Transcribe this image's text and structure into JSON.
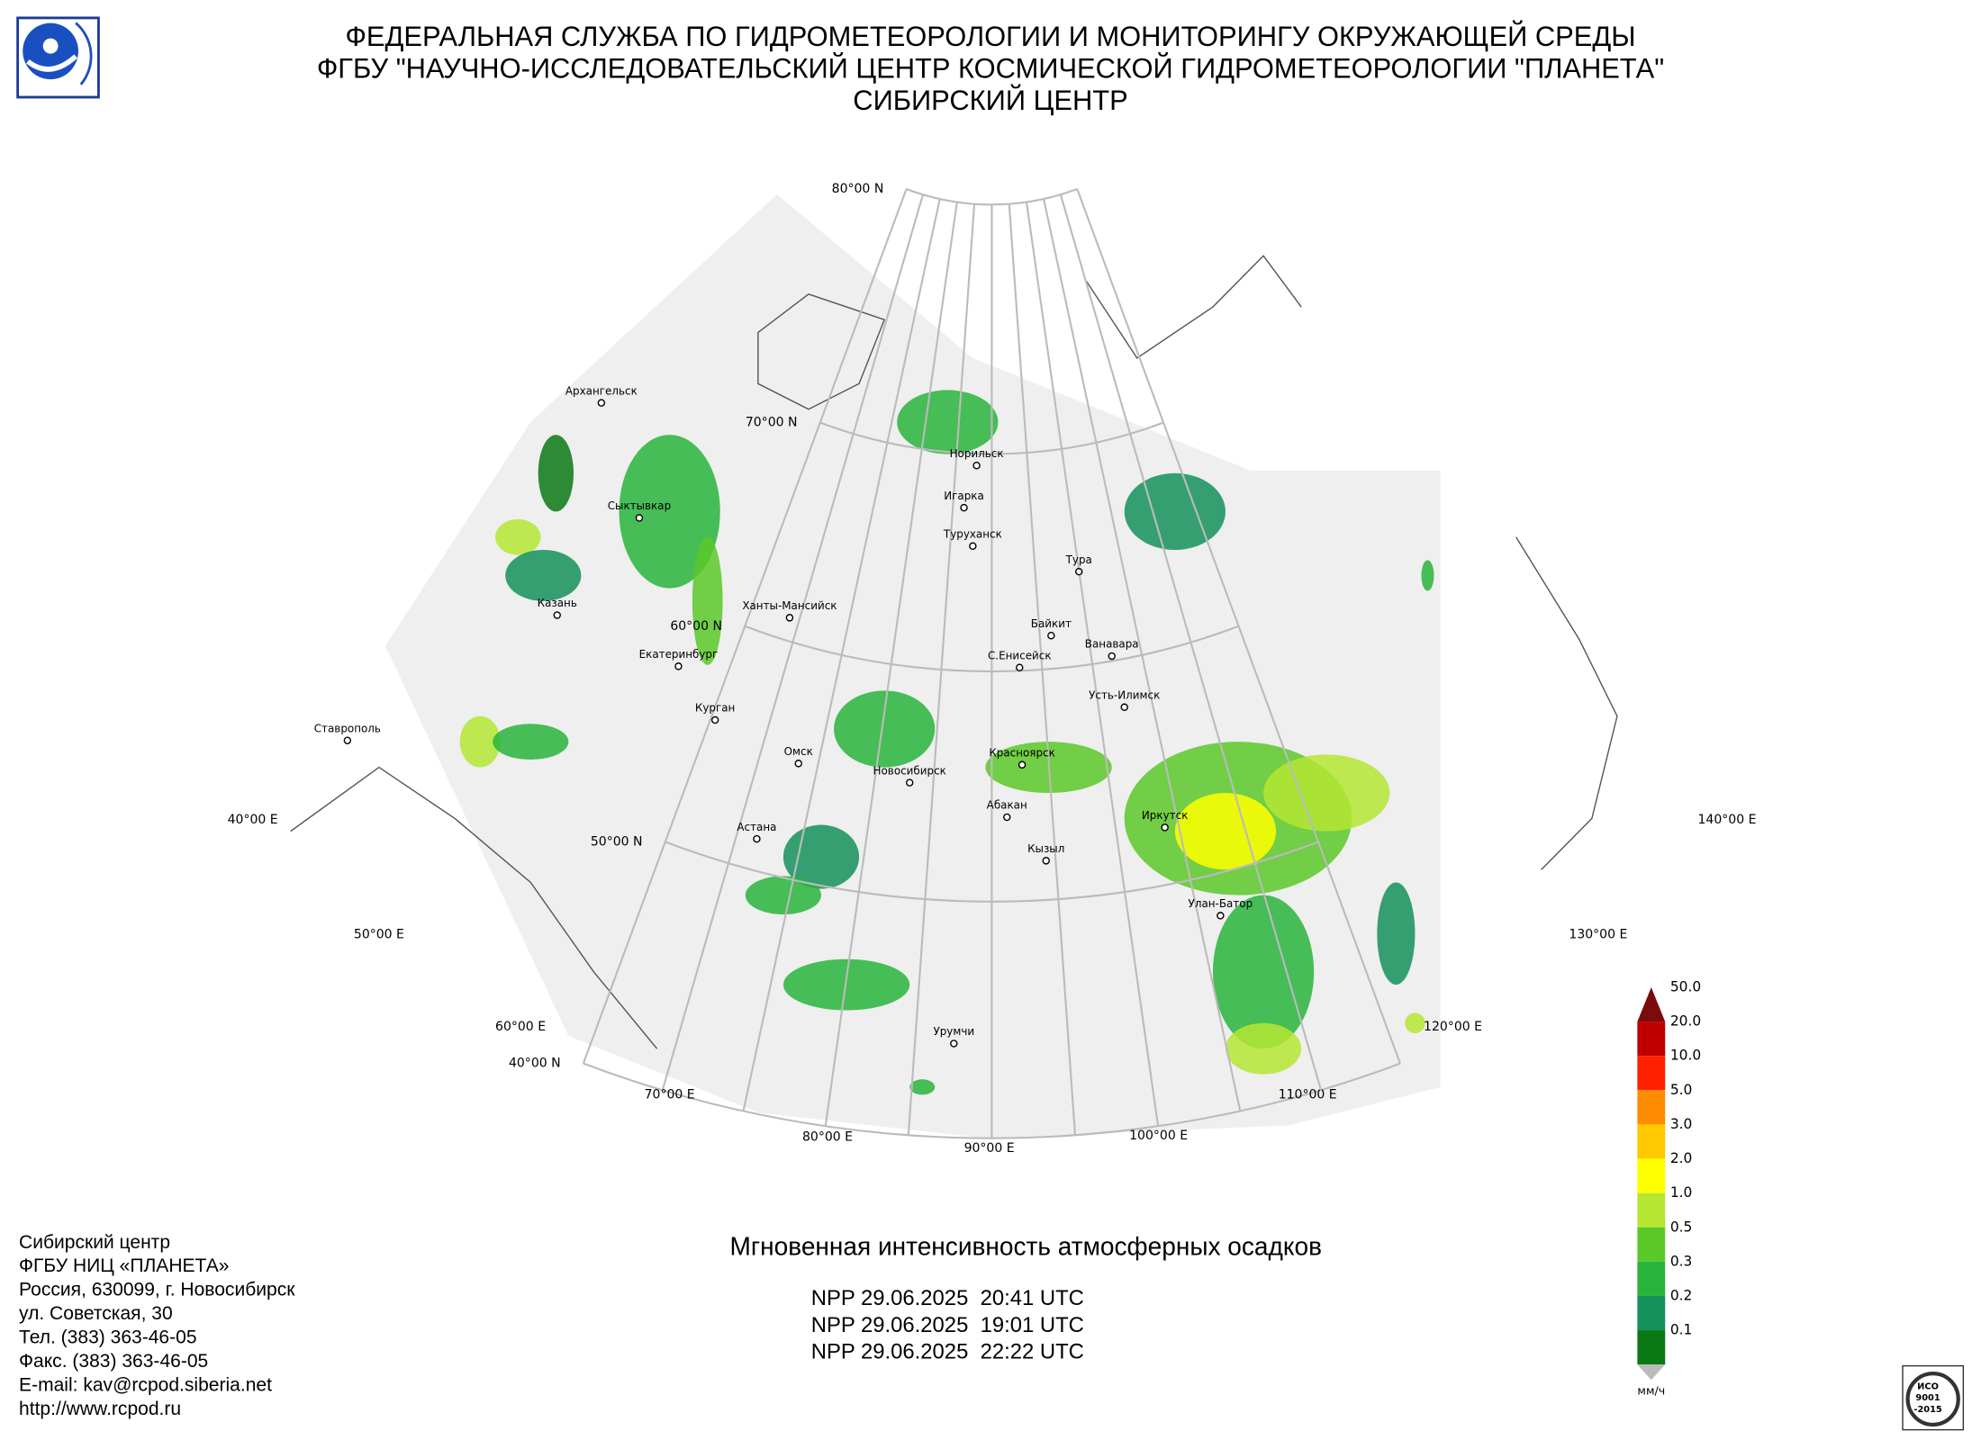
{
  "header": {
    "lines": [
      "ФЕДЕРАЛЬНАЯ СЛУЖБА ПО ГИДРОМЕТЕОРОЛОГИИ И МОНИТОРИНГУ ОКРУЖАЮЩЕЙ СРЕДЫ",
      "ФГБУ \"НАУЧНО-ИССЛЕДОВАТЕЛЬСКИЙ ЦЕНТР КОСМИЧЕСКОЙ ГИДРОМЕТЕОРОЛОГИИ \"ПЛАНЕТА\"",
      "СИБИРСКИЙ ЦЕНТР"
    ]
  },
  "graticule": {
    "parallels": [
      "80°00 N",
      "70°00 N",
      "60°00 N",
      "50°00 N",
      "40°00 N"
    ],
    "meridians": [
      "40°00 E",
      "50°00 E",
      "60°00 E",
      "70°00 E",
      "80°00 E",
      "90°00 E",
      "100°00 E",
      "110°00 E",
      "120°00 E",
      "130°00 E",
      "140°00 E"
    ]
  },
  "cities": [
    "Архангельск",
    "Сыктывкар",
    "Казань",
    "Екатеринбург",
    "Ставрополь",
    "Курган",
    "Ханты-Мансийск",
    "Омск",
    "Новосибирск",
    "Астана",
    "Норильск",
    "Игарка",
    "Туруханск",
    "Тура",
    "Байкит",
    "С.Енисейск",
    "Ванавара",
    "Усть-Илимск",
    "Красноярск",
    "Абакан",
    "Кызыл",
    "Иркутск",
    "Улан-Батор",
    "Урумчи"
  ],
  "legend": {
    "unit": "мм/ч",
    "levels": [
      {
        "label": "50.0",
        "color": "#7a0c0c"
      },
      {
        "label": "20.0",
        "color": "#c00000"
      },
      {
        "label": "10.0",
        "color": "#ff2000"
      },
      {
        "label": "5.0",
        "color": "#ff8c00"
      },
      {
        "label": "3.0",
        "color": "#ffc800"
      },
      {
        "label": "2.0",
        "color": "#ffff00"
      },
      {
        "label": "1.0",
        "color": "#b4e632"
      },
      {
        "label": "0.5",
        "color": "#5ac828"
      },
      {
        "label": "0.3",
        "color": "#28b43c"
      },
      {
        "label": "0.2",
        "color": "#14915a"
      },
      {
        "label": "0.1",
        "color": "#0a7814"
      }
    ]
  },
  "product": {
    "title": "Мгновенная интенсивность атмосферных осадков",
    "passes": [
      "NPP 29.06.2025  20:41 UTC",
      "NPP 29.06.2025  19:01 UTC",
      "NPP 29.06.2025  22:22 UTC"
    ]
  },
  "contacts": [
    "Сибирский центр",
    "ФГБУ НИЦ «ПЛАНЕТА»",
    "Россия, 630099, г. Новосибирск",
    "ул. Советская, 30",
    "Тел. (383) 363-46-05",
    "Факс. (383) 363-46-05",
    "E-mail: kav@rcpod.siberia.net",
    "http://www.rcpod.ru"
  ],
  "iso": [
    "ИСО",
    "9001",
    "-2015"
  ]
}
